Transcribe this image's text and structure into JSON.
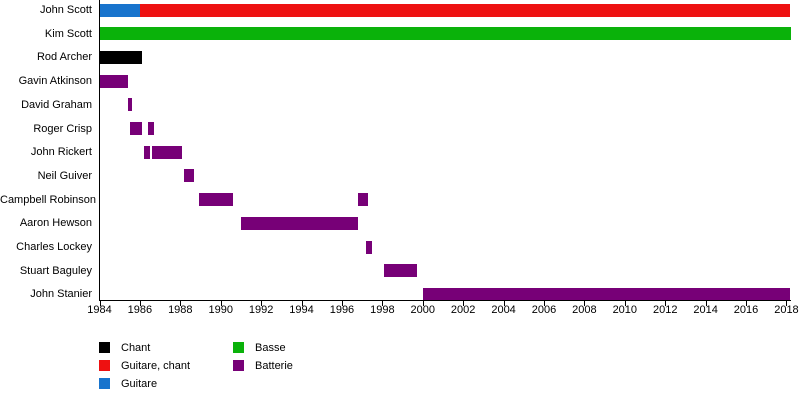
{
  "chart_data": {
    "type": "timeline",
    "title": "",
    "x_axis": {
      "min": 1984,
      "max": 2018.2,
      "unit": "year",
      "tick_labels": [
        "1984",
        "1986",
        "1988",
        "1990",
        "1992",
        "1994",
        "1996",
        "1998",
        "2000",
        "2002",
        "2004",
        "2006",
        "2008",
        "2010",
        "2012",
        "2014",
        "2016",
        "2018"
      ],
      "ticks": [
        1984,
        1986,
        1988,
        1990,
        1992,
        1994,
        1996,
        1998,
        2000,
        2002,
        2004,
        2006,
        2008,
        2010,
        2012,
        2014,
        2016,
        2018
      ]
    },
    "roles": {
      "Chant": "#000000",
      "Guitare, chant": "#EE1111",
      "Guitare": "#1874CD",
      "Basse": "#0AB20A",
      "Batterie": "#770077"
    },
    "legend": {
      "position": "bottom-left",
      "columns": [
        [
          {
            "label": "Chant"
          },
          {
            "label": "Guitare, chant"
          },
          {
            "label": "Guitare"
          }
        ],
        [
          {
            "label": "Basse"
          },
          {
            "label": "Batterie"
          }
        ]
      ]
    },
    "members": [
      {
        "name": "John Scott",
        "segments": [
          {
            "role": "Guitare",
            "start": 1984,
            "end": 1986
          },
          {
            "role": "Guitare, chant",
            "start": 1986,
            "end": 2018.2
          }
        ]
      },
      {
        "name": "Kim Scott",
        "segments": [
          {
            "role": "Basse",
            "start": 1984,
            "end": 2018.2
          }
        ]
      },
      {
        "name": "Rod Archer",
        "segments": [
          {
            "role": "Chant",
            "start": 1984,
            "end": 1986.1
          }
        ]
      },
      {
        "name": "Gavin Atkinson",
        "segments": [
          {
            "role": "Batterie",
            "start": 1984,
            "end": 1985.4
          }
        ]
      },
      {
        "name": "David Graham",
        "segments": [
          {
            "role": "Batterie",
            "start": 1985.4,
            "end": 1985.6
          }
        ]
      },
      {
        "name": "Roger Crisp",
        "segments": [
          {
            "role": "Batterie",
            "start": 1985.5,
            "end": 1986.1
          },
          {
            "role": "Batterie",
            "start": 1986.4,
            "end": 1986.7
          }
        ]
      },
      {
        "name": "John Rickert",
        "segments": [
          {
            "role": "Batterie",
            "start": 1986.2,
            "end": 1986.5
          },
          {
            "role": "Batterie",
            "start": 1986.6,
            "end": 1988.1
          }
        ]
      },
      {
        "name": "Neil Guiver",
        "segments": [
          {
            "role": "Batterie",
            "start": 1988.2,
            "end": 1988.7
          }
        ]
      },
      {
        "name": "Campbell Robinson",
        "segments": [
          {
            "role": "Batterie",
            "start": 1988.9,
            "end": 1990.6
          },
          {
            "role": "Batterie",
            "start": 1996.8,
            "end": 1997.3
          }
        ]
      },
      {
        "name": "Aaron Hewson",
        "segments": [
          {
            "role": "Batterie",
            "start": 1991.0,
            "end": 1996.8
          }
        ]
      },
      {
        "name": "Charles Lockey",
        "segments": [
          {
            "role": "Batterie",
            "start": 1997.2,
            "end": 1997.5
          }
        ]
      },
      {
        "name": "Stuart Baguley",
        "segments": [
          {
            "role": "Batterie",
            "start": 1998.1,
            "end": 1999.7
          }
        ]
      },
      {
        "name": "John Stanier",
        "segments": [
          {
            "role": "Batterie",
            "start": 2000.0,
            "end": 2018.2
          }
        ]
      }
    ]
  }
}
